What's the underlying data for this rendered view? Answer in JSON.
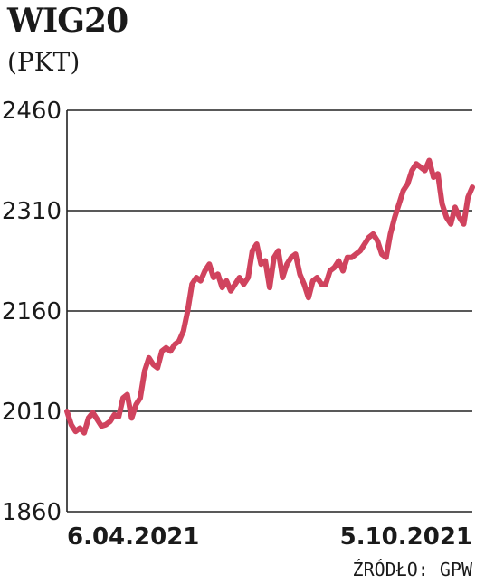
{
  "colors": {
    "line": "#d0435e",
    "grid": "#222222",
    "axis": "#222222"
  },
  "chart_data": {
    "type": "line",
    "title": "WIG20",
    "unit": "(PKT)",
    "source": "ŹRÓDŁO: GPW",
    "ylim": [
      1860,
      2460
    ],
    "yticks": [
      "2460",
      "2310",
      "2160",
      "2010",
      "1860"
    ],
    "ytick_values": [
      2460,
      2310,
      2160,
      2010,
      1860
    ],
    "x_tick_labels": [
      "6.04.2021",
      "5.10.2021"
    ],
    "grid": "horizontal",
    "series": [
      {
        "values": [
          2010,
          1990,
          1980,
          1985,
          1978,
          2000,
          2008,
          1998,
          1988,
          1990,
          1995,
          2005,
          2002,
          2030,
          2035,
          2000,
          2020,
          2030,
          2070,
          2090,
          2080,
          2075,
          2100,
          2105,
          2100,
          2110,
          2115,
          2130,
          2160,
          2200,
          2210,
          2205,
          2220,
          2230,
          2210,
          2215,
          2195,
          2205,
          2190,
          2200,
          2210,
          2200,
          2210,
          2250,
          2260,
          2230,
          2235,
          2195,
          2240,
          2250,
          2210,
          2230,
          2240,
          2245,
          2215,
          2200,
          2180,
          2205,
          2210,
          2200,
          2200,
          2220,
          2225,
          2235,
          2220,
          2240,
          2240,
          2245,
          2250,
          2260,
          2270,
          2275,
          2265,
          2245,
          2240,
          2275,
          2300,
          2320,
          2340,
          2350,
          2370,
          2380,
          2375,
          2370,
          2385,
          2360,
          2365,
          2320,
          2300,
          2290,
          2315,
          2300,
          2290,
          2330,
          2345
        ]
      }
    ]
  }
}
